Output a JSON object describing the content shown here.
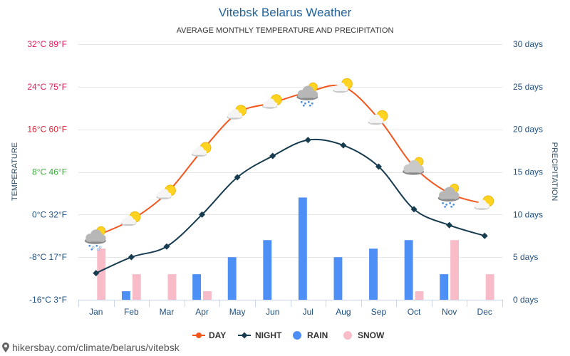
{
  "chart_data": {
    "type": "line",
    "title": "Vitebsk Belarus Weather",
    "subtitle": "AVERAGE MONTHLY TEMPERATURE AND PRECIPITATION",
    "categories": [
      "Jan",
      "Feb",
      "Mar",
      "Apr",
      "May",
      "Jun",
      "Jul",
      "Aug",
      "Sep",
      "Oct",
      "Nov",
      "Dec"
    ],
    "ylabel": "TEMPERATURE",
    "y2label": "PRECIPITATION",
    "ylim": [
      -16,
      32
    ],
    "y2lim": [
      0,
      30
    ],
    "yticks": [
      {
        "value": 32,
        "label": "32°C 89°F",
        "color": "#e8195f"
      },
      {
        "value": 24,
        "label": "24°C 75°F",
        "color": "#e01e5a"
      },
      {
        "value": 16,
        "label": "16°C 60°F",
        "color": "#dc2a3c"
      },
      {
        "value": 8,
        "label": "8°C 46°F",
        "color": "#3cab3c"
      },
      {
        "value": 0,
        "label": "0°C 32°F",
        "color": "#1e5082"
      },
      {
        "value": -8,
        "label": "-8°C 17°F",
        "color": "#1e5082"
      },
      {
        "value": -16,
        "label": "-16°C 3°F",
        "color": "#1e5082"
      }
    ],
    "y2ticks": [
      {
        "value": 30,
        "label": "30 days"
      },
      {
        "value": 25,
        "label": "25 days"
      },
      {
        "value": 20,
        "label": "20 days"
      },
      {
        "value": 15,
        "label": "15 days"
      },
      {
        "value": 10,
        "label": "10 days"
      },
      {
        "value": 5,
        "label": "5 days"
      },
      {
        "value": 0,
        "label": "0 days"
      }
    ],
    "grid": true,
    "legend_position": "bottom",
    "series": [
      {
        "name": "DAY",
        "type": "line",
        "y_axis": 0,
        "color": "#f2561d",
        "values": [
          -4,
          -1,
          4,
          12,
          19,
          21,
          23,
          24,
          18,
          9,
          4,
          2
        ],
        "icons": [
          "sleet",
          "partly-sunny",
          "partly-sunny",
          "partly-sunny",
          "partly-sunny",
          "partly-sunny",
          "showers",
          "partly-sunny",
          "partly-sunny",
          "mostly-cloudy",
          "showers",
          "partly-sunny"
        ]
      },
      {
        "name": "NIGHT",
        "type": "line",
        "y_axis": 0,
        "color": "#173b4f",
        "values": [
          -11,
          -8,
          -6,
          0,
          7,
          11,
          14,
          13,
          9,
          1,
          -2,
          -4
        ]
      },
      {
        "name": "RAIN",
        "type": "bar",
        "y_axis": 1,
        "color": "#4d8ff5",
        "values": [
          0,
          1,
          0,
          3,
          5,
          7,
          12,
          5,
          6,
          7,
          3,
          0
        ]
      },
      {
        "name": "SNOW",
        "type": "bar",
        "y_axis": 1,
        "color": "#f7bcc8",
        "values": [
          6,
          3,
          3,
          1,
          0,
          0,
          0,
          0,
          0,
          1,
          7,
          3
        ]
      }
    ]
  },
  "footer": {
    "text": "hikersbay.com/climate/belarus/vitebsk",
    "icon": "location-pin"
  }
}
